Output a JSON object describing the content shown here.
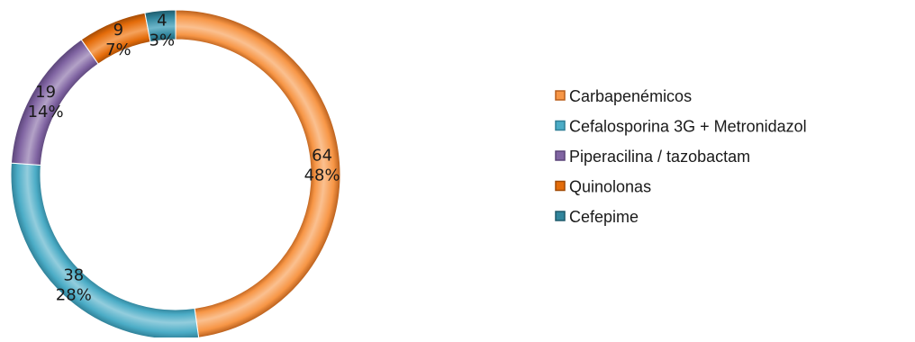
{
  "chart_data": {
    "type": "pie",
    "style": "doughnut",
    "categories": [
      "Carbapenémicos",
      "Cefalosporina 3G + Metronidazol",
      "Piperacilina / tazobactam",
      "Quinolonas",
      "Cefepime"
    ],
    "values": [
      64,
      38,
      19,
      9,
      4
    ],
    "percent_labels": [
      "48%",
      "28%",
      "14%",
      "7%",
      "3%"
    ],
    "colors": [
      "#F79646",
      "#4BACC6",
      "#8064A2",
      "#E46C0A",
      "#31859C"
    ],
    "dark_colors": [
      "#B85E1B",
      "#2F7F96",
      "#5A4478",
      "#A14A05",
      "#1E5A6B"
    ],
    "light_colors": [
      "#FAC090",
      "#93CDDD",
      "#B3A2C7",
      "#F5A25C",
      "#6FB7CB"
    ],
    "legend_position": "right"
  }
}
